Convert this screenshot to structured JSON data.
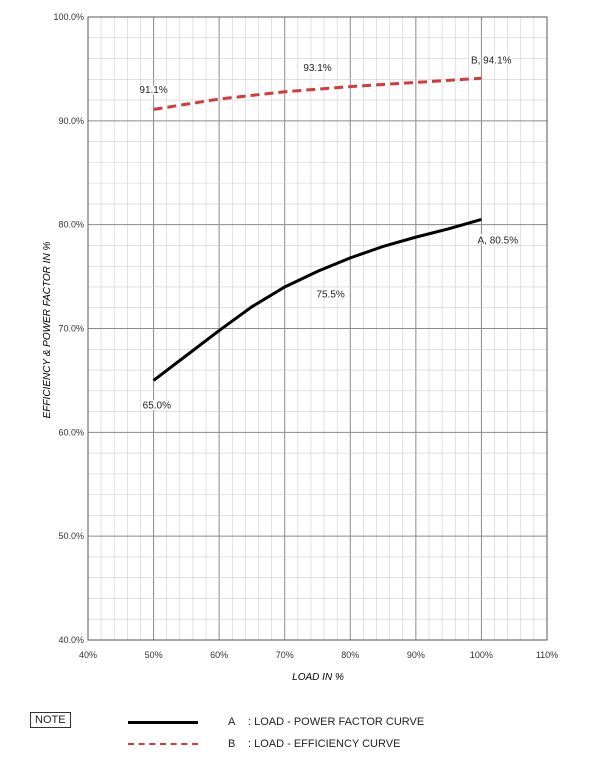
{
  "chart_data": {
    "type": "line",
    "xlabel": "LOAD IN %",
    "ylabel": "EFFICIENCY & POWER FACTOR IN %",
    "xlim": [
      40,
      110
    ],
    "ylim": [
      40,
      100
    ],
    "x_ticks": [
      "40%",
      "50%",
      "60%",
      "70%",
      "80%",
      "90%",
      "100%",
      "110%"
    ],
    "y_ticks": [
      "40.0%",
      "50.0%",
      "60.0%",
      "70.0%",
      "80.0%",
      "90.0%",
      "100.0%"
    ],
    "grid": true,
    "series": [
      {
        "name": "A : LOAD - POWER FACTOR CURVE",
        "code": "A",
        "color": "#000000",
        "style": "solid",
        "x": [
          50,
          55,
          60,
          65,
          70,
          75,
          80,
          85,
          90,
          95,
          100
        ],
        "y": [
          65.0,
          67.4,
          69.8,
          72.1,
          74.0,
          75.5,
          76.8,
          77.9,
          78.8,
          79.6,
          80.5
        ]
      },
      {
        "name": "B : LOAD - EFFICIENCY CURVE",
        "code": "B",
        "color": "#d23b3b",
        "style": "dashed",
        "x": [
          50,
          60,
          70,
          80,
          90,
          100
        ],
        "y": [
          91.1,
          92.1,
          92.8,
          93.3,
          93.7,
          94.1
        ]
      }
    ],
    "annotations": [
      {
        "text": "91.1%",
        "x": 50,
        "y": 92.7
      },
      {
        "text": "93.1%",
        "x": 75,
        "y": 94.8
      },
      {
        "text": "B, 94.1%",
        "x": 101.5,
        "y": 95.5
      },
      {
        "text": "A, 80.5%",
        "x": 102.5,
        "y": 78.2
      },
      {
        "text": "75.5%",
        "x": 77,
        "y": 73.0
      },
      {
        "text": "65.0%",
        "x": 50.5,
        "y": 62.3
      }
    ]
  },
  "legend": {
    "note_label": "NOTE",
    "items": [
      {
        "code": "A",
        "label": ": LOAD - POWER FACTOR CURVE"
      },
      {
        "code": "B",
        "label": ": LOAD - EFFICIENCY CURVE"
      }
    ]
  }
}
